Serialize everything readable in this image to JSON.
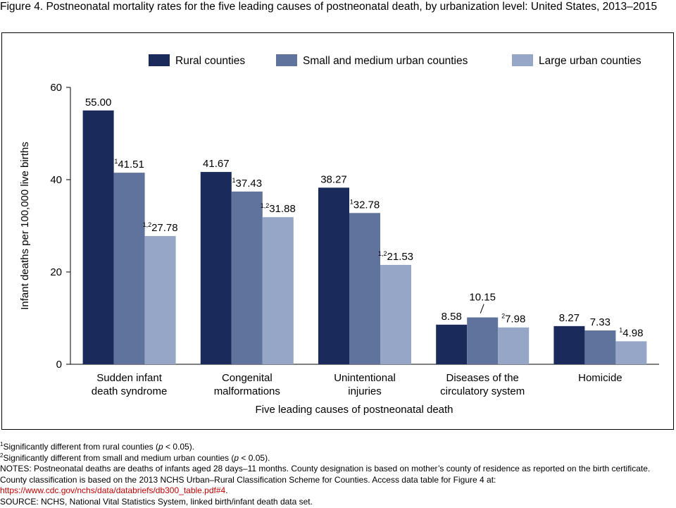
{
  "figure_title": "Figure 4. Postneonatal mortality rates for the five leading causes of postneonatal death, by urbanization level: United States, 2013–2015",
  "chart_data": {
    "type": "bar",
    "title": "Figure 4. Postneonatal mortality rates for the five leading causes of postneonatal death, by urbanization level: United States, 2013–2015",
    "xlabel": "Five leading causes of postneonatal death",
    "ylabel": "Infant deaths per 100,000 live births",
    "ylim": [
      0,
      60
    ],
    "yticks": [
      0,
      20,
      40,
      60
    ],
    "grid": false,
    "legend_position": "top",
    "categories": [
      [
        "Sudden infant",
        "death syndrome"
      ],
      [
        "Congenital",
        "malformations"
      ],
      [
        "Unintentional",
        "injuries"
      ],
      [
        "Diseases of the",
        "circulatory system"
      ],
      [
        "Homicide"
      ]
    ],
    "series": [
      {
        "name": "Rural counties",
        "color": "#1a2b5b",
        "values": [
          55.0,
          41.67,
          38.27,
          8.58,
          8.27
        ],
        "labels": [
          "55.00",
          "41.67",
          "38.27",
          "8.58",
          "8.27"
        ],
        "sup": [
          "",
          "",
          "",
          "",
          ""
        ]
      },
      {
        "name": "Small and medium urban counties",
        "color": "#5f739c",
        "values": [
          41.51,
          37.43,
          32.78,
          10.15,
          7.33
        ],
        "labels": [
          "41.51",
          "37.43",
          "32.78",
          "10.15",
          "7.33"
        ],
        "sup": [
          "1",
          "1",
          "1",
          "",
          ""
        ]
      },
      {
        "name": "Large urban counties",
        "color": "#96a6c6",
        "values": [
          27.78,
          31.88,
          21.53,
          7.98,
          4.98
        ],
        "labels": [
          "27.78",
          "31.88",
          "21.53",
          "7.98",
          "4.98"
        ],
        "sup": [
          "1,2",
          "1,2",
          "1,2",
          "2",
          "1"
        ]
      }
    ]
  },
  "footnotes": {
    "fn1": {
      "sup": "1",
      "text": "Significantly different from rural counties (",
      "p": "p",
      "tail": " < 0.05)."
    },
    "fn2": {
      "sup": "2",
      "text": "Significantly different from small and medium urban counties (",
      "p": "p",
      "tail": " < 0.05)."
    },
    "notes": "NOTES: Postneonatal deaths are deaths of infants aged 28 days–11 months. County designation is based on mother’s county of residence as reported on the birth certificate. County classification is based on the 2013 NCHS Urban–Rural Classification Scheme for Counties. Access data table for Figure 4 at:",
    "link": "https://www.cdc.gov/nchs/data/databriefs/db300_table.pdf#4",
    "link_tail": ".",
    "source": "SOURCE: NCHS, National Vital Statistics System, linked birth/infant death data set."
  }
}
